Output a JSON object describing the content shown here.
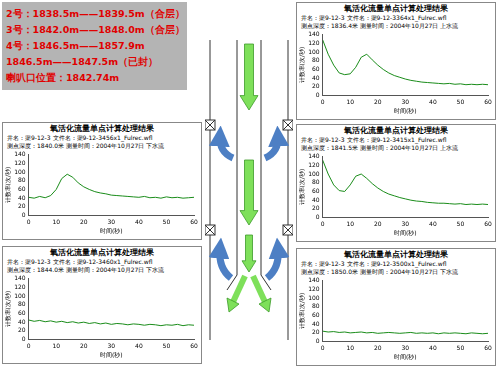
{
  "annotation_box": {
    "lines": [
      "2号：1838.5m——1839.5m（合层）",
      "3号：1842.0m——1848.0m（合层）",
      "4号：1846.5m——1857.9m",
      "1846.5m——1847.5m（已封）",
      "喇叭口位置：1842.74m"
    ]
  },
  "chart_data": [
    {
      "type": "line",
      "title": "氧活化流量单点计算处理结果",
      "subtitle": [
        "井名：渠9-12-3  文件名：渠9-12-3456x1_Fulrec.wfl",
        "测点深度：1840.0米  测量时间：2004年10月27日  下水流"
      ],
      "x_label": "时间(秒)",
      "y_label": "计数率(次/秒)",
      "color": "#1a8c1a",
      "grid": false,
      "x": [
        0,
        2,
        4,
        6,
        8,
        10,
        12,
        14,
        16,
        18,
        20,
        22,
        24,
        26,
        28,
        30,
        32,
        34,
        36,
        38,
        40,
        42,
        44,
        46,
        48,
        50,
        52,
        54,
        56,
        58,
        60
      ],
      "values": [
        42,
        40,
        44,
        41,
        46,
        60,
        85,
        95,
        88,
        75,
        66,
        60,
        55,
        52,
        50,
        47,
        46,
        45,
        44,
        43,
        42,
        44,
        41,
        42,
        40,
        43,
        41,
        42,
        40,
        41,
        42
      ],
      "xlim": [
        0,
        60
      ],
      "xticks": [
        0,
        10,
        20,
        30,
        40,
        50,
        60
      ],
      "ylim": [
        0,
        140
      ],
      "yticks": [
        0,
        20,
        40,
        60,
        80,
        100,
        120,
        140
      ]
    },
    {
      "type": "line",
      "title": "氧活化流量单点计算处理结果",
      "subtitle": [
        "井名：渠9-12-3  文件名：渠9-12-3460x1_Fulrec.wfl",
        "测点深度：1844.0米  测量时间：2004年10月27日  下水流"
      ],
      "x_label": "时间(秒)",
      "y_label": "计数率(次/秒)",
      "color": "#1a8c1a",
      "grid": false,
      "x": [
        0,
        2,
        4,
        6,
        8,
        10,
        12,
        14,
        16,
        18,
        20,
        22,
        24,
        26,
        28,
        30,
        32,
        34,
        36,
        38,
        40,
        42,
        44,
        46,
        48,
        50,
        52,
        54,
        56,
        58,
        60
      ],
      "values": [
        45,
        42,
        44,
        41,
        43,
        40,
        42,
        39,
        41,
        38,
        40,
        37,
        39,
        36,
        38,
        35,
        37,
        36,
        34,
        36,
        35,
        33,
        35,
        34,
        32,
        34,
        33,
        35,
        32,
        34,
        33
      ],
      "xlim": [
        0,
        60
      ],
      "xticks": [
        0,
        10,
        20,
        30,
        40,
        50,
        60
      ],
      "ylim": [
        0,
        140
      ],
      "yticks": [
        0,
        20,
        40,
        60,
        80,
        100,
        120,
        140
      ]
    },
    {
      "type": "line",
      "title": "氧活化流量单点计算处理结果",
      "subtitle": [
        "井名：渠9-12-3  文件名：渠9-12-3364x1_Fulrec.wfl",
        "测点深度：1836.4米  测量时间：2004年10月27日  上水流"
      ],
      "x_label": "时间(秒)",
      "y_label": "计数率(次/秒)",
      "color": "#1a8c1a",
      "grid": false,
      "x": [
        0,
        2,
        4,
        6,
        8,
        10,
        12,
        14,
        16,
        18,
        20,
        22,
        24,
        26,
        28,
        30,
        32,
        34,
        36,
        38,
        40,
        42,
        44,
        46,
        48,
        50,
        52,
        54,
        56,
        58,
        60
      ],
      "values": [
        128,
        95,
        70,
        52,
        48,
        50,
        65,
        88,
        95,
        82,
        70,
        60,
        52,
        46,
        42,
        38,
        35,
        33,
        31,
        30,
        29,
        28,
        27,
        28,
        26,
        27,
        25,
        26,
        25,
        26,
        25
      ],
      "xlim": [
        0,
        60
      ],
      "xticks": [
        0,
        10,
        20,
        30,
        40,
        50,
        60
      ],
      "ylim": [
        0,
        140
      ],
      "yticks": [
        0,
        20,
        40,
        60,
        80,
        100,
        120,
        140
      ]
    },
    {
      "type": "line",
      "title": "氧活化流量单点计算处理结果",
      "subtitle": [
        "井名：渠9-12-3  文件名：渠9-12-3415x1_Fulrec.wfl",
        "测点深度：1841.5米  测量时间：2004年10月27日  上水流"
      ],
      "x_label": "时间(秒)",
      "y_label": "计数率(次/秒)",
      "color": "#1a8c1a",
      "grid": false,
      "x": [
        0,
        2,
        4,
        6,
        8,
        10,
        12,
        14,
        16,
        18,
        20,
        22,
        24,
        26,
        28,
        30,
        32,
        34,
        36,
        38,
        40,
        42,
        44,
        46,
        48,
        50,
        52,
        54,
        56,
        58,
        60
      ],
      "values": [
        132,
        100,
        75,
        62,
        60,
        75,
        95,
        100,
        90,
        78,
        68,
        60,
        54,
        50,
        46,
        43,
        40,
        38,
        37,
        35,
        34,
        33,
        33,
        32,
        31,
        32,
        30,
        31,
        30,
        31,
        30
      ],
      "xlim": [
        0,
        60
      ],
      "xticks": [
        0,
        10,
        20,
        30,
        40,
        50,
        60
      ],
      "ylim": [
        0,
        140
      ],
      "yticks": [
        0,
        20,
        40,
        60,
        80,
        100,
        120,
        140
      ]
    },
    {
      "type": "line",
      "title": "氧活化流量单点计算处理结果",
      "subtitle": [
        "井名：渠9-12-3  文件名：渠9-12-3500x1_Fulrec.wfl",
        "测点深度：1850.0米  测量时间：2004年10月27日  下水流"
      ],
      "x_label": "时间(秒)",
      "y_label": "计数率(次/秒)",
      "color": "#1a8c1a",
      "grid": false,
      "x": [
        0,
        2,
        4,
        6,
        8,
        10,
        12,
        14,
        16,
        18,
        20,
        22,
        24,
        26,
        28,
        30,
        32,
        34,
        36,
        38,
        40,
        42,
        44,
        46,
        48,
        50,
        52,
        54,
        56,
        58,
        60
      ],
      "values": [
        24,
        22,
        23,
        21,
        22,
        20,
        21,
        22,
        20,
        21,
        19,
        20,
        21,
        20,
        19,
        20,
        21,
        19,
        20,
        19,
        20,
        18,
        20,
        19,
        20,
        19,
        18,
        20,
        19,
        18,
        19
      ],
      "xlim": [
        0,
        60
      ],
      "xticks": [
        0,
        10,
        20,
        30,
        40,
        50,
        60
      ],
      "ylim": [
        0,
        140
      ],
      "yticks": [
        0,
        20,
        40,
        60,
        80,
        100,
        120,
        140
      ]
    }
  ]
}
